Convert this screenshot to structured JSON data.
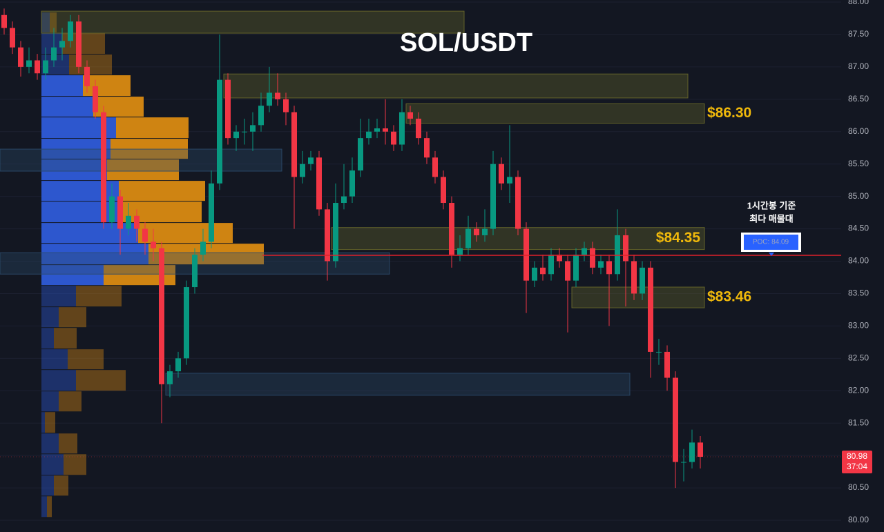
{
  "chart_data": {
    "type": "candlestick",
    "title": "SOL/USDT",
    "up_color": "#089981",
    "down_color": "#f23645",
    "open": [
      87.8,
      87.6,
      87.3,
      87.0,
      87.1,
      86.9,
      87.1,
      87.3,
      87.4,
      87.7,
      87.0,
      86.7,
      86.3,
      84.6,
      85.0,
      84.5,
      84.7,
      84.5,
      84.3,
      84.2,
      82.1,
      82.3,
      82.5,
      83.6,
      84.1,
      84.3,
      85.2,
      86.8,
      85.9,
      86.0,
      86.0,
      86.1,
      86.4,
      86.6,
      86.5,
      86.3,
      85.3,
      85.5,
      85.6,
      84.8,
      84.0,
      84.9,
      85.0,
      85.4,
      85.9,
      86.0,
      86.05,
      86.0,
      85.8,
      86.3,
      86.2,
      85.9,
      85.6,
      85.3,
      84.9,
      84.1,
      84.2,
      84.5,
      84.4,
      84.5,
      85.5,
      85.2,
      85.3,
      84.5,
      83.7,
      83.9,
      83.8,
      84.1,
      84.0,
      83.7,
      84.1,
      84.2,
      83.9,
      84.0,
      83.8,
      84.4,
      84.0,
      83.5,
      83.9,
      82.6,
      82.6,
      82.2,
      80.9,
      80.9,
      81.2
    ],
    "high": [
      87.9,
      87.7,
      87.4,
      87.3,
      87.2,
      87.3,
      87.6,
      87.6,
      87.8,
      87.8,
      87.1,
      86.8,
      86.4,
      85.2,
      85.1,
      84.9,
      84.8,
      84.6,
      84.5,
      84.3,
      82.4,
      82.6,
      83.7,
      84.2,
      84.5,
      85.4,
      87.5,
      86.9,
      86.1,
      86.2,
      86.3,
      86.6,
      87.0,
      86.9,
      86.6,
      86.4,
      85.7,
      85.7,
      85.7,
      84.9,
      85.2,
      85.5,
      85.6,
      86.2,
      86.2,
      86.2,
      86.5,
      86.1,
      86.5,
      86.4,
      86.3,
      86.0,
      85.7,
      85.4,
      85.0,
      84.4,
      84.7,
      84.6,
      84.8,
      85.7,
      85.6,
      86.1,
      85.4,
      84.6,
      84.0,
      84.1,
      84.2,
      84.2,
      84.1,
      84.2,
      84.3,
      84.3,
      84.1,
      84.1,
      84.8,
      84.5,
      84.1,
      84.0,
      84.0,
      82.8,
      82.7,
      82.3,
      81.1,
      81.4,
      81.3
    ],
    "low": [
      87.5,
      87.2,
      86.85,
      86.9,
      86.8,
      86.8,
      87.0,
      87.1,
      87.3,
      86.9,
      86.6,
      86.2,
      84.5,
      84.5,
      84.1,
      84.4,
      84.3,
      84.1,
      84.0,
      81.5,
      81.9,
      82.2,
      82.4,
      83.5,
      84.0,
      84.2,
      85.1,
      85.8,
      85.7,
      85.8,
      85.7,
      86.0,
      86.3,
      86.4,
      86.1,
      84.5,
      85.2,
      85.4,
      84.7,
      83.7,
      83.9,
      84.8,
      84.9,
      85.3,
      85.8,
      85.9,
      85.8,
      85.7,
      85.7,
      86.1,
      85.8,
      85.5,
      85.2,
      84.8,
      83.9,
      84.0,
      84.1,
      84.3,
      84.3,
      84.4,
      85.1,
      84.9,
      84.4,
      83.2,
      83.6,
      83.7,
      83.7,
      83.9,
      82.9,
      83.6,
      84.0,
      83.8,
      83.8,
      83.0,
      83.7,
      83.3,
      83.4,
      83.4,
      82.2,
      82.4,
      82.0,
      80.5,
      80.6,
      80.8,
      80.8
    ],
    "close": [
      87.6,
      87.3,
      87.0,
      87.1,
      86.9,
      87.1,
      87.3,
      87.4,
      87.7,
      87.0,
      86.7,
      86.3,
      84.6,
      85.0,
      84.5,
      84.7,
      84.5,
      84.3,
      84.2,
      82.1,
      82.3,
      82.5,
      83.6,
      84.1,
      84.3,
      85.2,
      86.8,
      85.9,
      86.0,
      86.0,
      86.1,
      86.4,
      86.6,
      86.5,
      86.3,
      85.3,
      85.5,
      85.6,
      84.8,
      84.0,
      84.9,
      85.0,
      85.4,
      85.9,
      86.0,
      86.05,
      86.0,
      85.8,
      86.3,
      86.2,
      85.9,
      85.6,
      85.3,
      84.9,
      84.1,
      84.2,
      84.5,
      84.4,
      84.5,
      85.5,
      85.2,
      85.3,
      84.5,
      83.7,
      83.9,
      83.8,
      84.1,
      84.0,
      83.7,
      84.1,
      84.2,
      83.9,
      84.0,
      83.8,
      84.4,
      84.0,
      83.5,
      83.9,
      82.6,
      82.6,
      82.2,
      80.9,
      80.9,
      81.2,
      80.98
    ],
    "ylim": [
      80,
      88
    ],
    "yticks": [
      {
        "value": 80,
        "label": "80.00"
      },
      {
        "value": 80.5,
        "label": "80.50"
      },
      {
        "value": 81,
        "label": "81.00"
      },
      {
        "value": 81.5,
        "label": "81.50"
      },
      {
        "value": 82,
        "label": "82.00"
      },
      {
        "value": 82.5,
        "label": "82.50"
      },
      {
        "value": 83,
        "label": "83.00"
      },
      {
        "value": 83.5,
        "label": "83.50"
      },
      {
        "value": 84,
        "label": "84.00"
      },
      {
        "value": 84.5,
        "label": "84.50"
      },
      {
        "value": 85,
        "label": "85.00"
      },
      {
        "value": 85.5,
        "label": "85.50"
      },
      {
        "value": 86,
        "label": "86.00"
      },
      {
        "value": 86.5,
        "label": "86.50"
      },
      {
        "value": 87,
        "label": "87.00"
      },
      {
        "value": 87.5,
        "label": "87.50"
      },
      {
        "value": 88,
        "label": "88.00"
      }
    ],
    "grid": true,
    "profile": {
      "bins": [
        87.84,
        87.52,
        87.19,
        86.87,
        86.54,
        86.22,
        85.89,
        85.57,
        85.24,
        84.92,
        84.59,
        84.27,
        83.94,
        83.62,
        83.29,
        82.97,
        82.64,
        82.32,
        81.99,
        81.67,
        81.34,
        81.02,
        80.69,
        80.37,
        80.04
      ],
      "buy": [
        12,
        30,
        40,
        60,
        75,
        108,
        100,
        95,
        112,
        118,
        140,
        155,
        90,
        50,
        25,
        18,
        38,
        50,
        25,
        5,
        25,
        32,
        18,
        8
      ],
      "sell": [
        10,
        62,
        62,
        69,
        73,
        105,
        112,
        104,
        125,
        114,
        137,
        167,
        104,
        66,
        40,
        33,
        52,
        72,
        33,
        15,
        27,
        33,
        21,
        7
      ],
      "buy_color": "#2e5bd8",
      "sell_color": "#d98a12",
      "value_area": [
        83.62,
        86.87
      ]
    },
    "zones": [
      {
        "top": 87.86,
        "bottom": 87.52,
        "from": 5,
        "to": 56,
        "color": "#6b6a2a"
      },
      {
        "top": 86.89,
        "bottom": 86.52,
        "from": 27,
        "to": 83,
        "color": "#6b6a2a"
      },
      {
        "top": 86.43,
        "bottom": 86.13,
        "from": 49,
        "to": 85,
        "color": "#6b6a2a",
        "label": "$86.30"
      },
      {
        "top": 85.73,
        "bottom": 85.39,
        "from": 0,
        "to": 34,
        "color": "#2b4a6b"
      },
      {
        "top": 84.52,
        "bottom": 84.18,
        "from": 40,
        "to": 85,
        "color": "#6b6a2a",
        "label": "$84.35"
      },
      {
        "top": 84.13,
        "bottom": 83.8,
        "from": 0,
        "to": 47,
        "color": "#2b4a6b"
      },
      {
        "top": 83.6,
        "bottom": 83.28,
        "from": 69,
        "to": 85,
        "color": "#6b6a2a",
        "label": "$83.46"
      },
      {
        "top": 82.27,
        "bottom": 81.93,
        "from": 20,
        "to": 76,
        "color": "#2b4a6b"
      }
    ],
    "poc": 84.09,
    "poc_label": "POC: 84.09",
    "annotation": [
      "1시간봉 기준",
      "최다 매물대"
    ],
    "last_price": 80.98,
    "countdown": "37:04"
  }
}
